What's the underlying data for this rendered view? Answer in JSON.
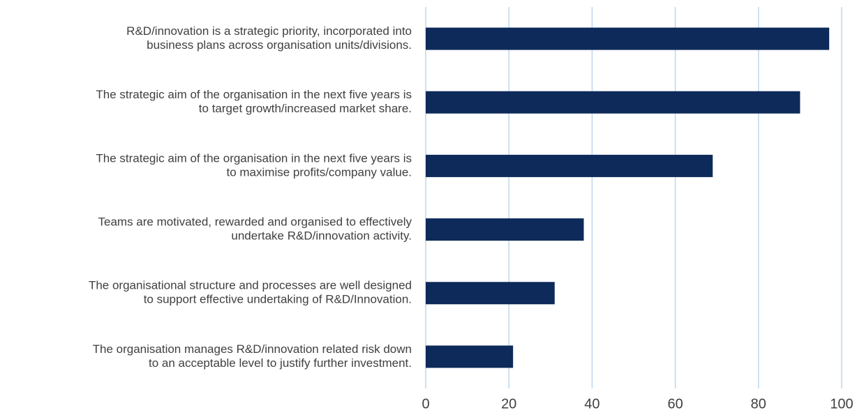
{
  "chart_data": {
    "type": "barh",
    "categories": [
      [
        "R&D/innovation is a strategic priority, incorporated into",
        "business plans across organisation units/divisions."
      ],
      [
        "The strategic aim of the organisation in the next five years is",
        "to target growth/increased market share."
      ],
      [
        "The strategic aim of the organisation in the next five years is",
        "to maximise profits/company value."
      ],
      [
        "Teams are motivated, rewarded and organised to effectively",
        "undertake R&D/innovation activity."
      ],
      [
        "The organisational structure and processes are well designed",
        "to support effective undertaking of R&D/Innovation."
      ],
      [
        "The organisation manages R&D/innovation related risk down",
        "to an acceptable level to justify further investment."
      ]
    ],
    "values": [
      97,
      90,
      69,
      38,
      31,
      21
    ],
    "color": "#0e2a5a",
    "xlim": [
      0,
      100
    ],
    "xticks": [
      0,
      20,
      40,
      60,
      80,
      100
    ],
    "grid": true
  }
}
